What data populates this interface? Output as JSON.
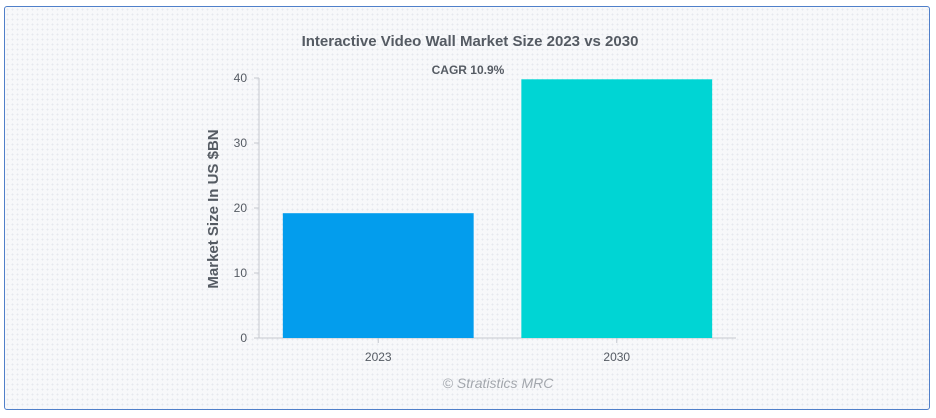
{
  "chart_data": {
    "type": "bar",
    "title": "Interactive Video Wall Market Size 2023 vs 2030",
    "annotation": "CAGR 10.9%",
    "xlabel": "",
    "ylabel": "Market Size In US $BN",
    "categories": [
      "2023",
      "2030"
    ],
    "values": [
      19.2,
      39.8
    ],
    "colors": [
      "#039ded",
      "#00d5d4"
    ],
    "ylim": [
      0,
      40
    ],
    "yticks": [
      0,
      10,
      20,
      30,
      40
    ],
    "grid": false,
    "legend": "none"
  },
  "footer": {
    "credit": "© Stratistics MRC"
  }
}
